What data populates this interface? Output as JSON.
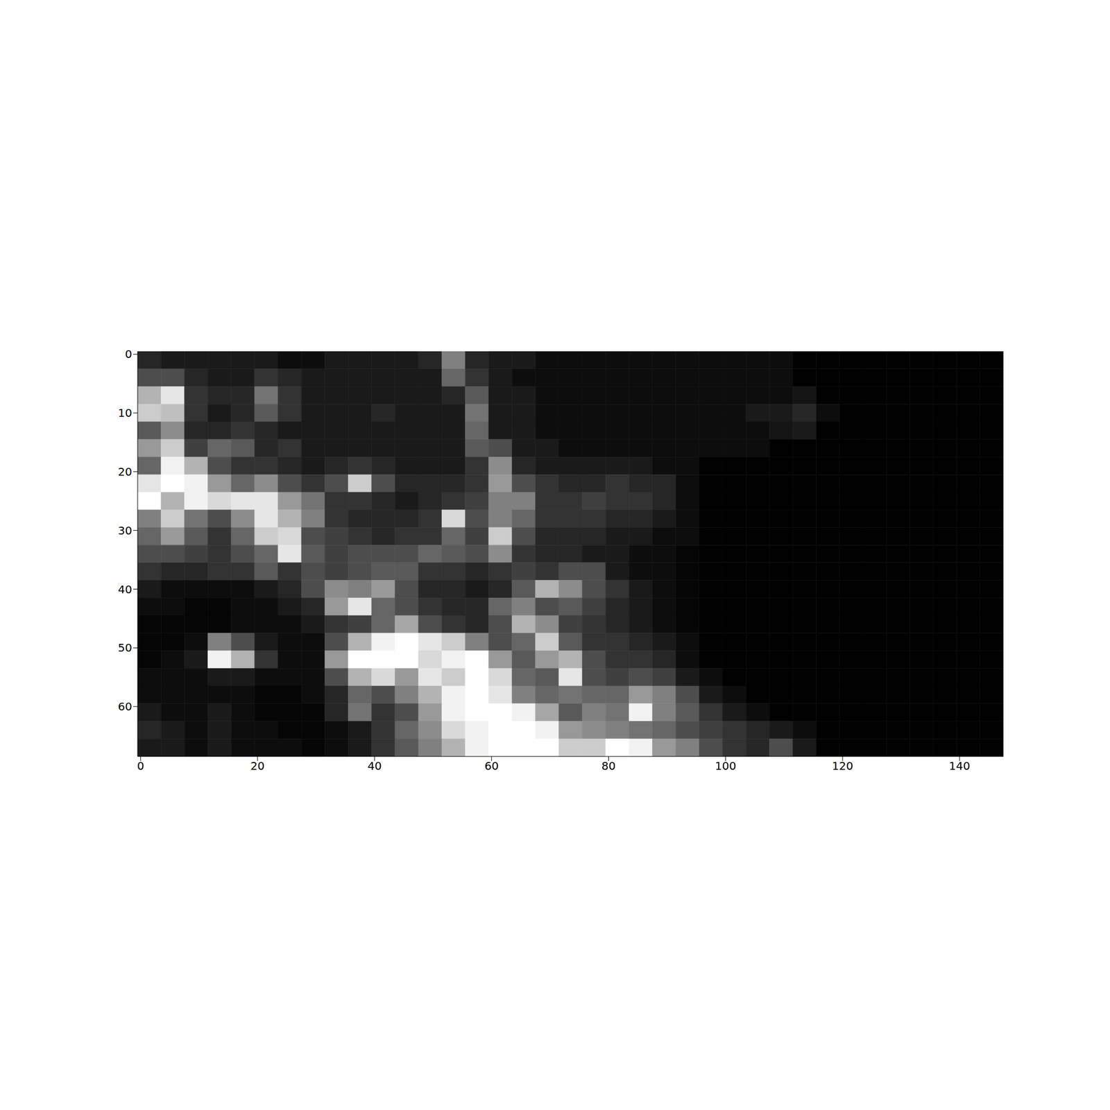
{
  "chart_data": {
    "type": "heatmap",
    "color": "gray",
    "xlim": [
      -0.5,
      147.5
    ],
    "ylim": [
      68.5,
      -0.5
    ],
    "xticks": [
      0,
      20,
      40,
      60,
      80,
      100,
      120,
      140
    ],
    "yticks": [
      0,
      10,
      20,
      30,
      40,
      50,
      60
    ],
    "color_range": [
      0,
      1
    ],
    "cells": [
      [
        0.15,
        0.1,
        0.1,
        0.1,
        0.1,
        0.1,
        0.05,
        0.05,
        0.1,
        0.1,
        0.1,
        0.1,
        0.15,
        0.5,
        0.15,
        0.1,
        0.1,
        0.05,
        0.05,
        0.05,
        0.05,
        0.05,
        0.05,
        0.05,
        0.05,
        0.05,
        0.05,
        0.05,
        0,
        0,
        0,
        0,
        0,
        0,
        0,
        0,
        0
      ],
      [
        0.3,
        0.3,
        0.15,
        0.1,
        0.1,
        0.2,
        0.15,
        0.1,
        0.1,
        0.1,
        0.1,
        0.1,
        0.1,
        0.4,
        0.2,
        0.1,
        0.05,
        0.05,
        0.05,
        0.05,
        0.05,
        0.05,
        0.05,
        0.05,
        0.05,
        0.05,
        0.05,
        0.05,
        0,
        0,
        0,
        0,
        0,
        0,
        0,
        0,
        0
      ],
      [
        0.7,
        0.9,
        0.2,
        0.15,
        0.15,
        0.45,
        0.2,
        0.1,
        0.1,
        0.1,
        0.1,
        0.1,
        0.1,
        0.15,
        0.35,
        0.1,
        0.1,
        0.05,
        0.05,
        0.05,
        0.05,
        0.05,
        0.05,
        0.05,
        0.05,
        0.05,
        0.05,
        0.05,
        0.08,
        0,
        0,
        0,
        0,
        0,
        0,
        0,
        0
      ],
      [
        0.8,
        0.75,
        0.2,
        0.1,
        0.15,
        0.35,
        0.2,
        0.1,
        0.1,
        0.1,
        0.15,
        0.1,
        0.1,
        0.1,
        0.45,
        0.1,
        0.1,
        0.05,
        0.05,
        0.05,
        0.05,
        0.05,
        0.05,
        0.05,
        0.05,
        0.05,
        0.1,
        0.1,
        0.15,
        0.05,
        0,
        0,
        0,
        0,
        0,
        0,
        0
      ],
      [
        0.35,
        0.55,
        0.15,
        0.15,
        0.2,
        0.15,
        0.1,
        0.1,
        0.1,
        0.1,
        0.1,
        0.1,
        0.1,
        0.1,
        0.4,
        0.1,
        0.1,
        0.05,
        0.05,
        0.05,
        0.05,
        0.05,
        0.05,
        0.05,
        0.05,
        0.05,
        0.05,
        0.08,
        0.1,
        0,
        0,
        0,
        0,
        0,
        0,
        0,
        0
      ],
      [
        0.6,
        0.8,
        0.25,
        0.4,
        0.35,
        0.15,
        0.2,
        0.1,
        0.1,
        0.1,
        0.1,
        0.1,
        0.1,
        0.1,
        0.35,
        0.3,
        0.1,
        0.1,
        0.05,
        0.05,
        0.05,
        0.05,
        0.05,
        0.05,
        0.05,
        0.05,
        0.05,
        0,
        0,
        0,
        0,
        0,
        0,
        0,
        0,
        0,
        0
      ],
      [
        0.4,
        0.95,
        0.7,
        0.3,
        0.2,
        0.2,
        0.15,
        0.1,
        0.15,
        0.2,
        0.15,
        0.1,
        0.1,
        0.1,
        0.2,
        0.55,
        0.15,
        0.1,
        0.1,
        0.1,
        0.1,
        0.1,
        0.05,
        0.05,
        0,
        0,
        0,
        0,
        0,
        0,
        0,
        0,
        0,
        0,
        0,
        0,
        0
      ],
      [
        0.9,
        1,
        0.95,
        0.6,
        0.4,
        0.55,
        0.3,
        0.2,
        0.3,
        0.8,
        0.3,
        0.15,
        0.15,
        0.15,
        0.2,
        0.6,
        0.3,
        0.2,
        0.15,
        0.15,
        0.2,
        0.15,
        0.15,
        0.05,
        0,
        0,
        0,
        0,
        0,
        0,
        0,
        0,
        0,
        0,
        0,
        0,
        0
      ],
      [
        1,
        0.7,
        0.95,
        0.85,
        0.9,
        0.9,
        0.6,
        0.45,
        0.2,
        0.2,
        0.15,
        0.1,
        0.15,
        0.2,
        0.25,
        0.5,
        0.5,
        0.2,
        0.2,
        0.25,
        0.2,
        0.2,
        0.15,
        0.05,
        0,
        0,
        0,
        0,
        0,
        0,
        0,
        0,
        0,
        0,
        0,
        0,
        0
      ],
      [
        0.5,
        0.8,
        0.45,
        0.3,
        0.55,
        0.9,
        0.7,
        0.5,
        0.2,
        0.15,
        0.15,
        0.15,
        0.2,
        0.85,
        0.3,
        0.5,
        0.4,
        0.2,
        0.2,
        0.2,
        0.15,
        0.15,
        0.1,
        0.05,
        0,
        0,
        0,
        0,
        0,
        0,
        0,
        0,
        0,
        0,
        0,
        0,
        0
      ],
      [
        0.4,
        0.6,
        0.35,
        0.2,
        0.4,
        0.8,
        0.85,
        0.3,
        0.25,
        0.2,
        0.15,
        0.2,
        0.2,
        0.4,
        0.25,
        0.8,
        0.3,
        0.15,
        0.15,
        0.15,
        0.1,
        0.1,
        0.05,
        0.05,
        0,
        0,
        0,
        0,
        0,
        0,
        0,
        0,
        0,
        0,
        0,
        0,
        0
      ],
      [
        0.3,
        0.3,
        0.25,
        0.2,
        0.3,
        0.4,
        0.9,
        0.35,
        0.25,
        0.3,
        0.3,
        0.3,
        0.4,
        0.35,
        0.3,
        0.55,
        0.2,
        0.15,
        0.15,
        0.1,
        0.1,
        0.05,
        0.05,
        0.02,
        0,
        0,
        0,
        0,
        0,
        0,
        0,
        0,
        0,
        0,
        0,
        0,
        0
      ],
      [
        0.2,
        0.15,
        0.15,
        0.2,
        0.2,
        0.35,
        0.2,
        0.3,
        0.25,
        0.3,
        0.35,
        0.35,
        0.2,
        0.2,
        0.15,
        0.2,
        0.25,
        0.2,
        0.3,
        0.3,
        0.1,
        0.05,
        0.05,
        0.02,
        0,
        0,
        0,
        0,
        0,
        0,
        0,
        0,
        0,
        0,
        0,
        0,
        0
      ],
      [
        0.1,
        0.05,
        0.05,
        0.05,
        0.05,
        0.1,
        0.15,
        0.3,
        0.55,
        0.5,
        0.6,
        0.3,
        0.15,
        0.15,
        0.1,
        0.15,
        0.35,
        0.7,
        0.55,
        0.3,
        0.2,
        0.1,
        0.05,
        0.02,
        0,
        0,
        0,
        0,
        0,
        0,
        0,
        0,
        0,
        0,
        0,
        0,
        0
      ],
      [
        0.05,
        0.05,
        0.02,
        0.02,
        0.05,
        0.05,
        0.1,
        0.15,
        0.6,
        0.9,
        0.4,
        0.3,
        0.2,
        0.15,
        0.15,
        0.4,
        0.5,
        0.3,
        0.35,
        0.25,
        0.15,
        0.1,
        0.05,
        0.02,
        0,
        0,
        0,
        0,
        0,
        0,
        0,
        0,
        0,
        0,
        0,
        0,
        0
      ],
      [
        0.02,
        0.02,
        0.02,
        0.02,
        0.05,
        0.05,
        0.05,
        0.1,
        0.2,
        0.25,
        0.4,
        0.65,
        0.3,
        0.2,
        0.15,
        0.3,
        0.7,
        0.55,
        0.25,
        0.2,
        0.15,
        0.1,
        0.05,
        0.02,
        0,
        0,
        0,
        0,
        0,
        0,
        0,
        0,
        0,
        0,
        0,
        0,
        0
      ],
      [
        0.02,
        0.02,
        0.05,
        0.5,
        0.3,
        0.1,
        0.05,
        0.05,
        0.3,
        0.7,
        0.95,
        1,
        0.9,
        0.8,
        0.5,
        0.3,
        0.4,
        0.8,
        0.35,
        0.2,
        0.2,
        0.15,
        0.1,
        0.05,
        0,
        0,
        0,
        0,
        0,
        0,
        0,
        0,
        0,
        0,
        0,
        0,
        0
      ],
      [
        0.02,
        0.05,
        0.1,
        0.95,
        0.7,
        0.2,
        0.05,
        0.05,
        0.6,
        1,
        1,
        1,
        0.85,
        0.95,
        1,
        0.6,
        0.35,
        0.6,
        0.7,
        0.3,
        0.2,
        0.2,
        0.15,
        0.05,
        0,
        0,
        0,
        0,
        0,
        0,
        0,
        0,
        0,
        0,
        0,
        0,
        0
      ],
      [
        0.05,
        0.05,
        0.05,
        0.1,
        0.1,
        0.05,
        0.05,
        0.05,
        0.3,
        0.7,
        0.85,
        0.6,
        0.9,
        0.8,
        1,
        0.85,
        0.4,
        0.35,
        0.9,
        0.3,
        0.25,
        0.3,
        0.25,
        0.1,
        0.05,
        0,
        0,
        0,
        0,
        0,
        0,
        0,
        0,
        0,
        0,
        0,
        0
      ],
      [
        0.05,
        0.05,
        0.05,
        0.05,
        0.05,
        0.02,
        0.02,
        0.05,
        0.15,
        0.4,
        0.3,
        0.5,
        0.7,
        0.95,
        1,
        0.9,
        0.5,
        0.4,
        0.45,
        0.4,
        0.4,
        0.6,
        0.5,
        0.3,
        0.1,
        0.05,
        0,
        0,
        0,
        0,
        0,
        0,
        0,
        0,
        0,
        0,
        0
      ],
      [
        0.1,
        0.05,
        0.05,
        0.1,
        0.05,
        0.02,
        0.02,
        0.02,
        0.15,
        0.45,
        0.2,
        0.3,
        0.6,
        0.95,
        1,
        1,
        0.95,
        0.65,
        0.35,
        0.5,
        0.45,
        0.95,
        0.5,
        0.35,
        0.2,
        0.1,
        0.05,
        0,
        0,
        0,
        0,
        0,
        0,
        0,
        0,
        0,
        0
      ],
      [
        0.15,
        0.1,
        0.05,
        0.1,
        0.05,
        0.05,
        0.02,
        0.02,
        0.05,
        0.1,
        0.2,
        0.4,
        0.55,
        0.85,
        0.95,
        1,
        1,
        0.95,
        0.6,
        0.55,
        0.5,
        0.45,
        0.4,
        0.3,
        0.25,
        0.2,
        0.15,
        0.1,
        0.05,
        0,
        0,
        0,
        0,
        0,
        0,
        0,
        0
      ],
      [
        0.1,
        0.1,
        0.05,
        0.1,
        0.05,
        0.05,
        0.05,
        0.02,
        0.05,
        0.1,
        0.2,
        0.35,
        0.5,
        0.7,
        0.95,
        1,
        1,
        1,
        0.8,
        0.8,
        1,
        0.95,
        0.6,
        0.5,
        0.3,
        0.2,
        0.15,
        0.3,
        0.1,
        0,
        0,
        0,
        0,
        0,
        0,
        0,
        0
      ]
    ]
  }
}
